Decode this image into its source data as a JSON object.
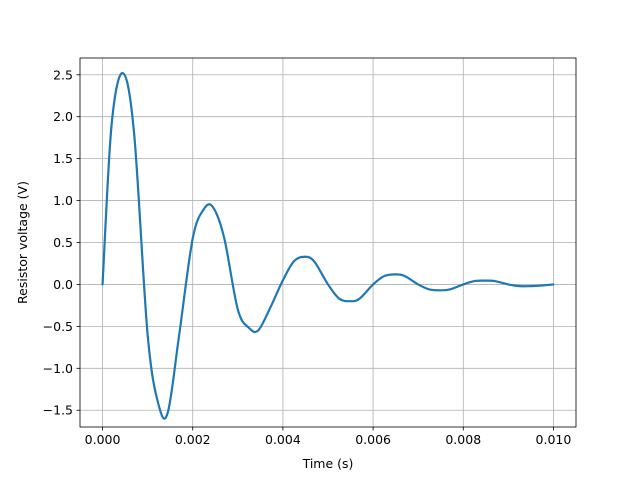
{
  "chart_data": {
    "type": "line",
    "title": "",
    "xlabel": "Time (s)",
    "ylabel": "Resistor voltage (V)",
    "xlim": [
      -0.0005,
      0.0105
    ],
    "ylim": [
      -1.7,
      2.7
    ],
    "grid": true,
    "x_ticks": [
      0.0,
      0.002,
      0.004,
      0.006,
      0.008,
      0.01
    ],
    "x_tick_labels": [
      "0.000",
      "0.002",
      "0.004",
      "0.006",
      "0.008",
      "0.010"
    ],
    "y_ticks": [
      -1.5,
      -1.0,
      -0.5,
      0.0,
      0.5,
      1.0,
      1.5,
      2.0,
      2.5
    ],
    "y_tick_labels": [
      "−1.5",
      "−1.0",
      "−0.5",
      "0.0",
      "0.5",
      "1.0",
      "1.5",
      "2.0",
      "2.5"
    ],
    "series": [
      {
        "color": "#1f77b4",
        "x": [
          0.0,
          0.0002,
          0.00045,
          0.0007,
          0.001,
          0.00125,
          0.00145,
          0.0017,
          0.002,
          0.00225,
          0.00245,
          0.0027,
          0.003,
          0.00325,
          0.00345,
          0.0037,
          0.004,
          0.00425,
          0.0045,
          0.0047,
          0.005,
          0.00525,
          0.0055,
          0.0057,
          0.006,
          0.00625,
          0.0065,
          0.0067,
          0.007,
          0.00725,
          0.0075,
          0.0077,
          0.008,
          0.00825,
          0.0085,
          0.0087,
          0.009,
          0.00925,
          0.0095,
          0.0097,
          0.01
        ],
        "y": [
          0.0,
          1.9,
          2.52,
          1.8,
          -0.6,
          -1.45,
          -1.52,
          -0.6,
          0.55,
          0.9,
          0.92,
          0.55,
          -0.3,
          -0.52,
          -0.55,
          -0.3,
          0.05,
          0.28,
          0.33,
          0.27,
          0.0,
          -0.17,
          -0.2,
          -0.17,
          0.0,
          0.1,
          0.12,
          0.1,
          0.0,
          -0.06,
          -0.07,
          -0.06,
          0.0,
          0.04,
          0.045,
          0.04,
          0.0,
          -0.02,
          -0.02,
          -0.015,
          0.0
        ]
      }
    ]
  }
}
